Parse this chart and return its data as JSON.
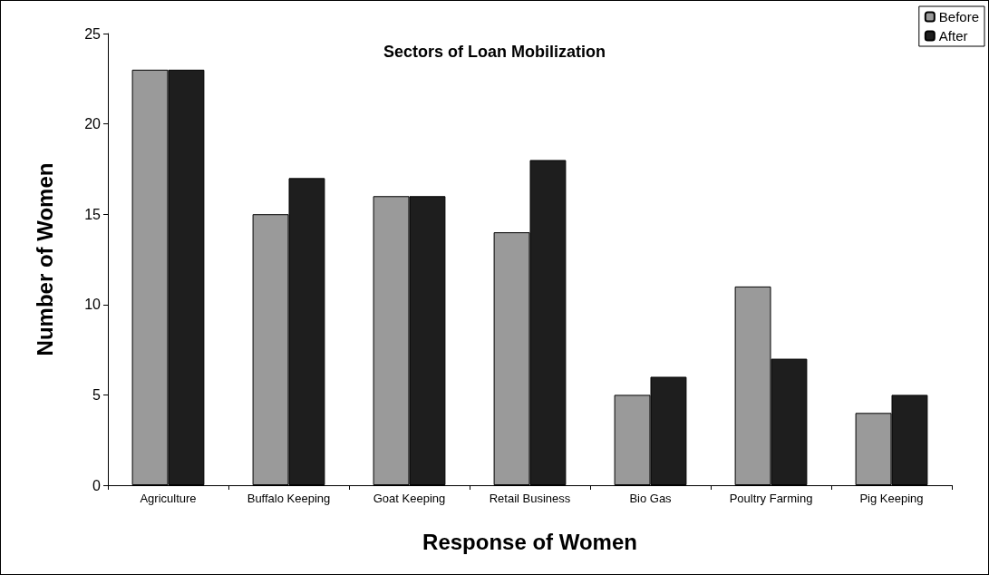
{
  "chart_data": {
    "type": "bar",
    "title": "Sectors of Loan Mobilization",
    "xlabel": "Response of Women",
    "ylabel": "Number of Women",
    "categories": [
      "Agriculture",
      "Buffalo Keeping",
      "Goat Keeping",
      "Retail Business",
      "Bio Gas",
      "Poultry Farming",
      "Pig Keeping"
    ],
    "series": [
      {
        "name": "Before",
        "color": "#9a9a9a",
        "values": [
          23,
          15,
          16,
          14,
          5,
          11,
          4
        ]
      },
      {
        "name": "After",
        "color": "#1e1e1e",
        "values": [
          23,
          17,
          16,
          18,
          6,
          7,
          5
        ]
      }
    ],
    "ylim": [
      0,
      25
    ],
    "yticks": [
      0,
      5,
      10,
      15,
      20,
      25
    ],
    "grid": false,
    "legend": "top right"
  }
}
